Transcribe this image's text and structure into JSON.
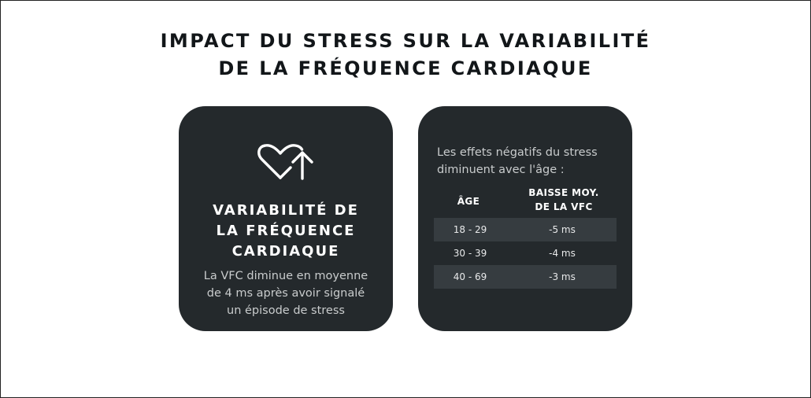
{
  "title": {
    "line1": "IMPACT DU STRESS SUR LA VARIABILITÉ",
    "line2": "DE LA FRÉQUENCE CARDIAQUE"
  },
  "left_card": {
    "icon": "heart-arrow-up-icon",
    "heading_lines": [
      "VARIABILITÉ DE",
      "LA FRÉQUENCE",
      "CARDIAQUE"
    ],
    "description_lines": [
      "La VFC diminue en moyenne",
      "de 4 ms après avoir signalé",
      "un épisode de stress"
    ]
  },
  "right_card": {
    "intro_lines": [
      "Les effets négatifs du stress",
      "diminuent avec l'âge :"
    ],
    "table": {
      "headers": {
        "age": "ÂGE",
        "drop_lines": [
          "BAISSE MOY.",
          "DE LA VFC"
        ]
      },
      "rows": [
        {
          "age": "18 - 29",
          "value": "-5 ms"
        },
        {
          "age": "30 - 39",
          "value": "-4 ms"
        },
        {
          "age": "40 - 69",
          "value": "-3 ms"
        }
      ]
    }
  },
  "colors": {
    "card_bg": "#24292c",
    "row_shade": "#363c40",
    "title_text": "#121619"
  }
}
